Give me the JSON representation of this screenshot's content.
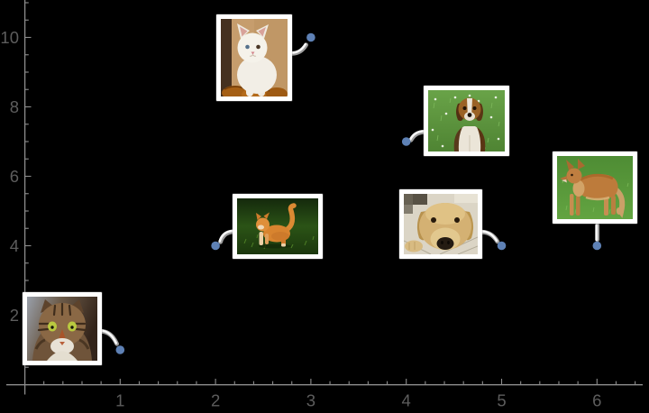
{
  "chart_data": {
    "type": "scatter",
    "points": [
      {
        "x": 1,
        "y": 1,
        "image": "tabby-cat-portrait"
      },
      {
        "x": 2,
        "y": 4,
        "image": "orange-cat-on-grass"
      },
      {
        "x": 3,
        "y": 10,
        "image": "white-kitten"
      },
      {
        "x": 4,
        "y": 7,
        "image": "beagle-puppy-in-grass"
      },
      {
        "x": 5,
        "y": 4,
        "image": "yellow-labrador-face"
      },
      {
        "x": 6,
        "y": 4,
        "image": "tan-dog-standing-on-grass"
      }
    ],
    "x_tick_labels": [
      "1",
      "2",
      "3",
      "4",
      "5",
      "6"
    ],
    "y_tick_labels": [
      "2",
      "4",
      "6",
      "8",
      "10"
    ],
    "x_major_values": [
      1,
      2,
      3,
      4,
      5,
      6
    ],
    "y_major_values": [
      2,
      4,
      6,
      8,
      10
    ],
    "xlim": [
      -0.19,
      6.48
    ],
    "ylim": [
      -0.28,
      11.1
    ],
    "x_minor_step": 0.2,
    "y_minor_step": 0.5,
    "grid": false
  },
  "style": {
    "background": "#000000",
    "point_color": "#5e81b5",
    "point_radius": 4.8,
    "axis_color": "#8d8d8d",
    "tick_label_color": "#5d5d5d",
    "tick_label_size": 18.5,
    "frame_color": "#ffffff",
    "connector_color": "#fafafa",
    "connector_shadow_color": "#9e9e9e"
  }
}
